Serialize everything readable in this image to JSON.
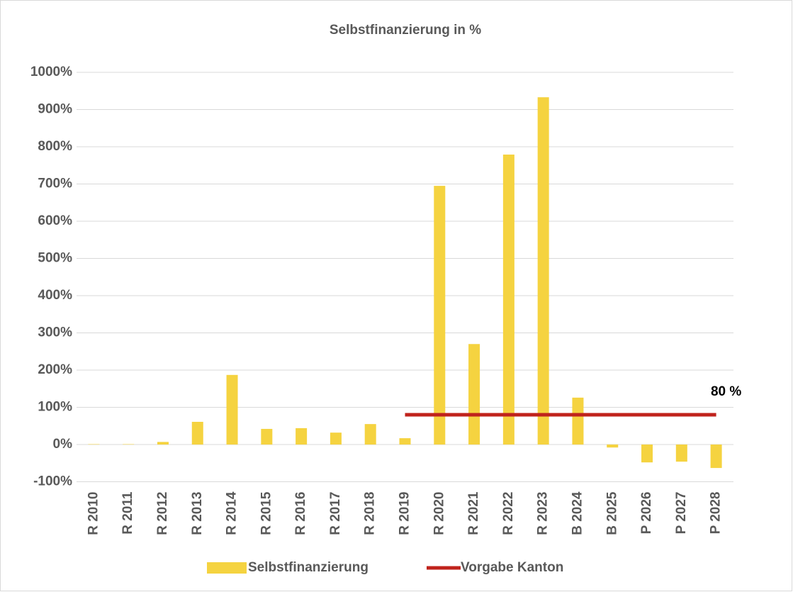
{
  "chart_data": {
    "type": "bar",
    "title": "Selbstfinanzierung in %",
    "categories": [
      "R 2010",
      "R 2011",
      "R 2012",
      "R 2013",
      "R 2014",
      "R 2015",
      "R 2016",
      "R 2017",
      "R 2018",
      "R 2019",
      "R 2020",
      "R 2021",
      "R 2022",
      "R 2023",
      "B 2024",
      "B 2025",
      "P 2026",
      "P 2027",
      "P 2028"
    ],
    "series": [
      {
        "name": "Selbstfinanzierung",
        "type": "bar",
        "color": "#f5d340",
        "values": [
          1,
          1,
          7,
          61,
          187,
          42,
          44,
          32,
          55,
          17,
          695,
          270,
          779,
          933,
          126,
          -8,
          -48,
          -46,
          -63
        ]
      },
      {
        "name": "Vorgabe Kanton",
        "type": "line",
        "color": "#c0231c",
        "values": [
          null,
          null,
          null,
          null,
          null,
          null,
          null,
          null,
          null,
          80,
          80,
          80,
          80,
          80,
          80,
          80,
          80,
          80,
          80
        ],
        "value_labels": [
          null,
          null,
          null,
          null,
          null,
          null,
          null,
          null,
          null,
          null,
          null,
          null,
          null,
          null,
          null,
          null,
          null,
          null,
          "80 %"
        ]
      }
    ],
    "ylim": [
      -100,
      1000
    ],
    "yticks": [
      {
        "value": -100,
        "label": "-100%"
      },
      {
        "value": 0,
        "label": "0%"
      },
      {
        "value": 100,
        "label": "100%"
      },
      {
        "value": 200,
        "label": "200%"
      },
      {
        "value": 300,
        "label": "300%"
      },
      {
        "value": 400,
        "label": "400%"
      },
      {
        "value": 500,
        "label": "500%"
      },
      {
        "value": 600,
        "label": "600%"
      },
      {
        "value": 700,
        "label": "700%"
      },
      {
        "value": 800,
        "label": "800%"
      },
      {
        "value": 900,
        "label": "900%"
      },
      {
        "value": 1000,
        "label": "1000%"
      }
    ],
    "grid": true,
    "legend": "bottom"
  }
}
